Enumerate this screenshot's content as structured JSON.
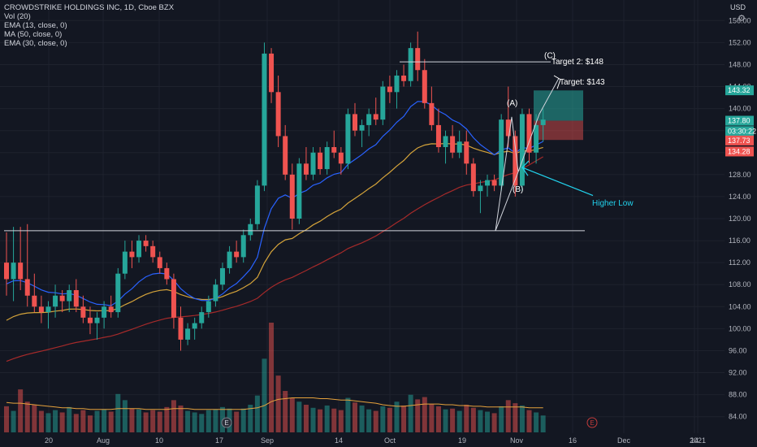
{
  "header": {
    "title": "CROWDSTRIKE HOLDINGS INC, 1D, Cboe BZX",
    "currency": "USD",
    "indicators": [
      "Vol (20)",
      "EMA (13, close, 0)",
      "MA (50, close, 0)",
      "EMA (30, close, 0)"
    ]
  },
  "icons": {
    "settings": "gear-icon",
    "earnings": "earnings-marker-icon"
  },
  "colors": {
    "up": "#26a69a",
    "down": "#ef5350",
    "ema13": "#2962ff",
    "ma50": "#a52a2a",
    "ema30": "#d4a33a",
    "annotation": "#ffffff",
    "higher_low": "#22d3ee"
  },
  "chart_data": {
    "type": "candlestick",
    "title": "CROWDSTRIKE HOLDINGS INC, 1D, Cboe BZX",
    "ylim": [
      81,
      159
    ],
    "y_ticks": [
      "156.00",
      "152.00",
      "148.00",
      "144.00",
      "140.00",
      "136.00",
      "132.00",
      "128.00",
      "124.00",
      "120.00",
      "116.00",
      "112.00",
      "108.00",
      "104.00",
      "100.00",
      "96.00",
      "92.00",
      "88.00",
      "84.00"
    ],
    "x_ticks": [
      "20",
      "Aug",
      "10",
      "17",
      "Sep",
      "14",
      "Oct",
      "19",
      "Nov",
      "16",
      "Dec",
      "14",
      "2021"
    ],
    "price_labels": [
      {
        "text": "143.32",
        "price": 143.32,
        "color": "#26a69a"
      },
      {
        "text": "137.80",
        "price": 137.8,
        "color": "#26a69a"
      },
      {
        "text": "03:30:22",
        "price": 135.9,
        "color": "#26a69a"
      },
      {
        "text": "137.73",
        "price": 134.2,
        "color": "#ef5350"
      },
      {
        "text": "134.28",
        "price": 132.2,
        "color": "#ef5350"
      }
    ],
    "annotations": {
      "target2": "Target 2: $148",
      "target": "Target: $143",
      "wave_a": "(A)",
      "wave_b": "(B)",
      "wave_c": "(C)",
      "higher_low": "Higher Low"
    },
    "levels": {
      "target2": 148.5,
      "support": 117.8,
      "target_zone_top": 143.3,
      "entry": 137.8,
      "stop": 134.3
    },
    "earnings_markers": [
      "E",
      "E"
    ],
    "candles": [
      [
        112,
        117.5,
        106,
        109
      ],
      [
        109,
        118.5,
        105,
        112
      ],
      [
        112,
        118.5,
        107,
        109
      ],
      [
        109,
        119,
        104,
        106
      ],
      [
        106,
        110,
        103,
        104
      ],
      [
        104,
        106,
        101,
        103
      ],
      [
        103,
        105,
        100,
        104
      ],
      [
        104,
        108,
        102,
        106
      ],
      [
        106,
        107,
        103,
        105
      ],
      [
        105,
        108,
        103,
        107
      ],
      [
        107,
        109,
        103,
        104
      ],
      [
        104,
        106,
        101,
        102
      ],
      [
        102,
        104,
        99,
        101
      ],
      [
        101,
        103,
        98,
        102
      ],
      [
        102,
        105,
        100,
        104
      ],
      [
        104,
        106,
        102,
        103
      ],
      [
        103,
        111,
        102,
        110
      ],
      [
        110,
        116,
        109,
        114
      ],
      [
        114,
        116,
        111,
        113
      ],
      [
        113,
        117,
        112,
        116
      ],
      [
        116,
        117,
        114,
        115
      ],
      [
        115,
        116,
        112,
        113
      ],
      [
        113,
        114,
        110,
        111
      ],
      [
        111,
        112,
        108,
        109
      ],
      [
        109,
        110,
        100,
        102
      ],
      [
        102,
        104,
        96,
        98
      ],
      [
        98,
        101,
        97,
        100
      ],
      [
        100,
        102,
        98,
        101
      ],
      [
        101,
        104,
        100,
        103
      ],
      [
        103,
        106,
        102,
        105
      ],
      [
        105,
        109,
        104,
        108
      ],
      [
        108,
        112,
        107,
        111
      ],
      [
        111,
        115,
        110,
        114
      ],
      [
        114,
        116,
        112,
        113
      ],
      [
        113,
        118,
        112,
        117
      ],
      [
        117,
        120,
        116,
        119
      ],
      [
        119,
        127,
        118,
        126
      ],
      [
        126,
        152,
        125,
        150
      ],
      [
        150,
        151,
        141,
        143
      ],
      [
        143,
        146,
        133,
        135
      ],
      [
        135,
        137,
        127,
        128
      ],
      [
        128,
        130,
        118,
        120
      ],
      [
        120,
        131,
        119,
        130
      ],
      [
        130,
        133,
        127,
        128
      ],
      [
        128,
        133,
        127,
        132
      ],
      [
        132,
        133,
        128,
        129
      ],
      [
        129,
        134,
        128,
        133
      ],
      [
        133,
        136,
        131,
        132
      ],
      [
        132,
        133,
        128,
        130
      ],
      [
        130,
        140,
        129,
        139
      ],
      [
        139,
        141,
        135,
        136
      ],
      [
        136,
        138,
        133,
        137
      ],
      [
        137,
        140,
        135,
        139
      ],
      [
        139,
        142,
        137,
        138
      ],
      [
        138,
        145,
        137,
        144
      ],
      [
        144,
        146,
        141,
        143
      ],
      [
        143,
        147,
        140,
        146
      ],
      [
        146,
        148,
        144,
        145
      ],
      [
        145,
        152,
        144,
        151
      ],
      [
        151,
        154,
        145,
        147
      ],
      [
        147,
        149,
        140,
        141
      ],
      [
        141,
        144,
        136,
        137
      ],
      [
        137,
        140,
        132,
        133
      ],
      [
        133,
        136,
        130,
        135
      ],
      [
        135,
        137,
        131,
        132
      ],
      [
        132,
        136,
        131,
        134
      ],
      [
        134,
        136,
        128,
        130
      ],
      [
        130,
        131,
        124,
        125
      ],
      [
        125,
        127,
        121,
        126
      ],
      [
        126,
        128,
        124,
        127
      ],
      [
        127,
        128,
        125,
        126
      ],
      [
        126,
        139,
        125,
        138
      ],
      [
        138,
        144,
        133,
        135
      ],
      [
        135,
        136,
        124,
        126
      ],
      [
        126,
        140,
        125,
        139
      ],
      [
        139,
        140,
        130,
        132
      ],
      [
        132,
        139,
        130,
        137
      ],
      [
        137,
        140,
        134,
        138
      ]
    ],
    "volume": [
      3.4,
      2.8,
      5.6,
      4.0,
      3.6,
      2.8,
      2.5,
      2.9,
      2.6,
      3.3,
      2.4,
      2.9,
      2.2,
      2.8,
      3.0,
      2.7,
      5.0,
      4.2,
      3.1,
      3.0,
      2.6,
      2.9,
      2.7,
      3.3,
      4.2,
      3.5,
      2.8,
      2.6,
      2.4,
      2.9,
      3.0,
      3.3,
      3.1,
      2.7,
      3.1,
      3.6,
      4.8,
      9.6,
      14.3,
      7.4,
      5.4,
      4.5,
      4.0,
      3.6,
      3.2,
      3.0,
      3.5,
      3.1,
      2.9,
      4.5,
      3.9,
      3.5,
      3.0,
      2.8,
      3.4,
      3.2,
      4.0,
      3.5,
      4.9,
      4.3,
      4.6,
      3.7,
      3.4,
      3.0,
      3.1,
      2.8,
      3.6,
      3.2,
      2.9,
      2.7,
      2.5,
      3.4,
      4.2,
      3.8,
      3.5,
      2.9,
      2.6,
      2.2
    ],
    "vol_ma": [
      3.9,
      3.8,
      3.8,
      3.7,
      3.6,
      3.5,
      3.4,
      3.3,
      3.2,
      3.2,
      3.1,
      3.1,
      3.0,
      3.0,
      3.0,
      3.0,
      3.1,
      3.1,
      3.1,
      3.1,
      3.0,
      3.0,
      3.0,
      3.0,
      3.1,
      3.1,
      3.1,
      3.0,
      3.0,
      3.0,
      3.0,
      3.0,
      3.0,
      3.0,
      3.0,
      3.1,
      3.2,
      3.5,
      4.0,
      4.3,
      4.4,
      4.5,
      4.5,
      4.5,
      4.5,
      4.4,
      4.4,
      4.3,
      4.2,
      4.2,
      4.1,
      4.0,
      3.9,
      3.8,
      3.6,
      3.5,
      3.4,
      3.4,
      3.5,
      3.6,
      3.7,
      3.7,
      3.7,
      3.6,
      3.6,
      3.5,
      3.5,
      3.4,
      3.4,
      3.3,
      3.3,
      3.3,
      3.3,
      3.3,
      3.3,
      3.2,
      3.2,
      3.2
    ]
  }
}
